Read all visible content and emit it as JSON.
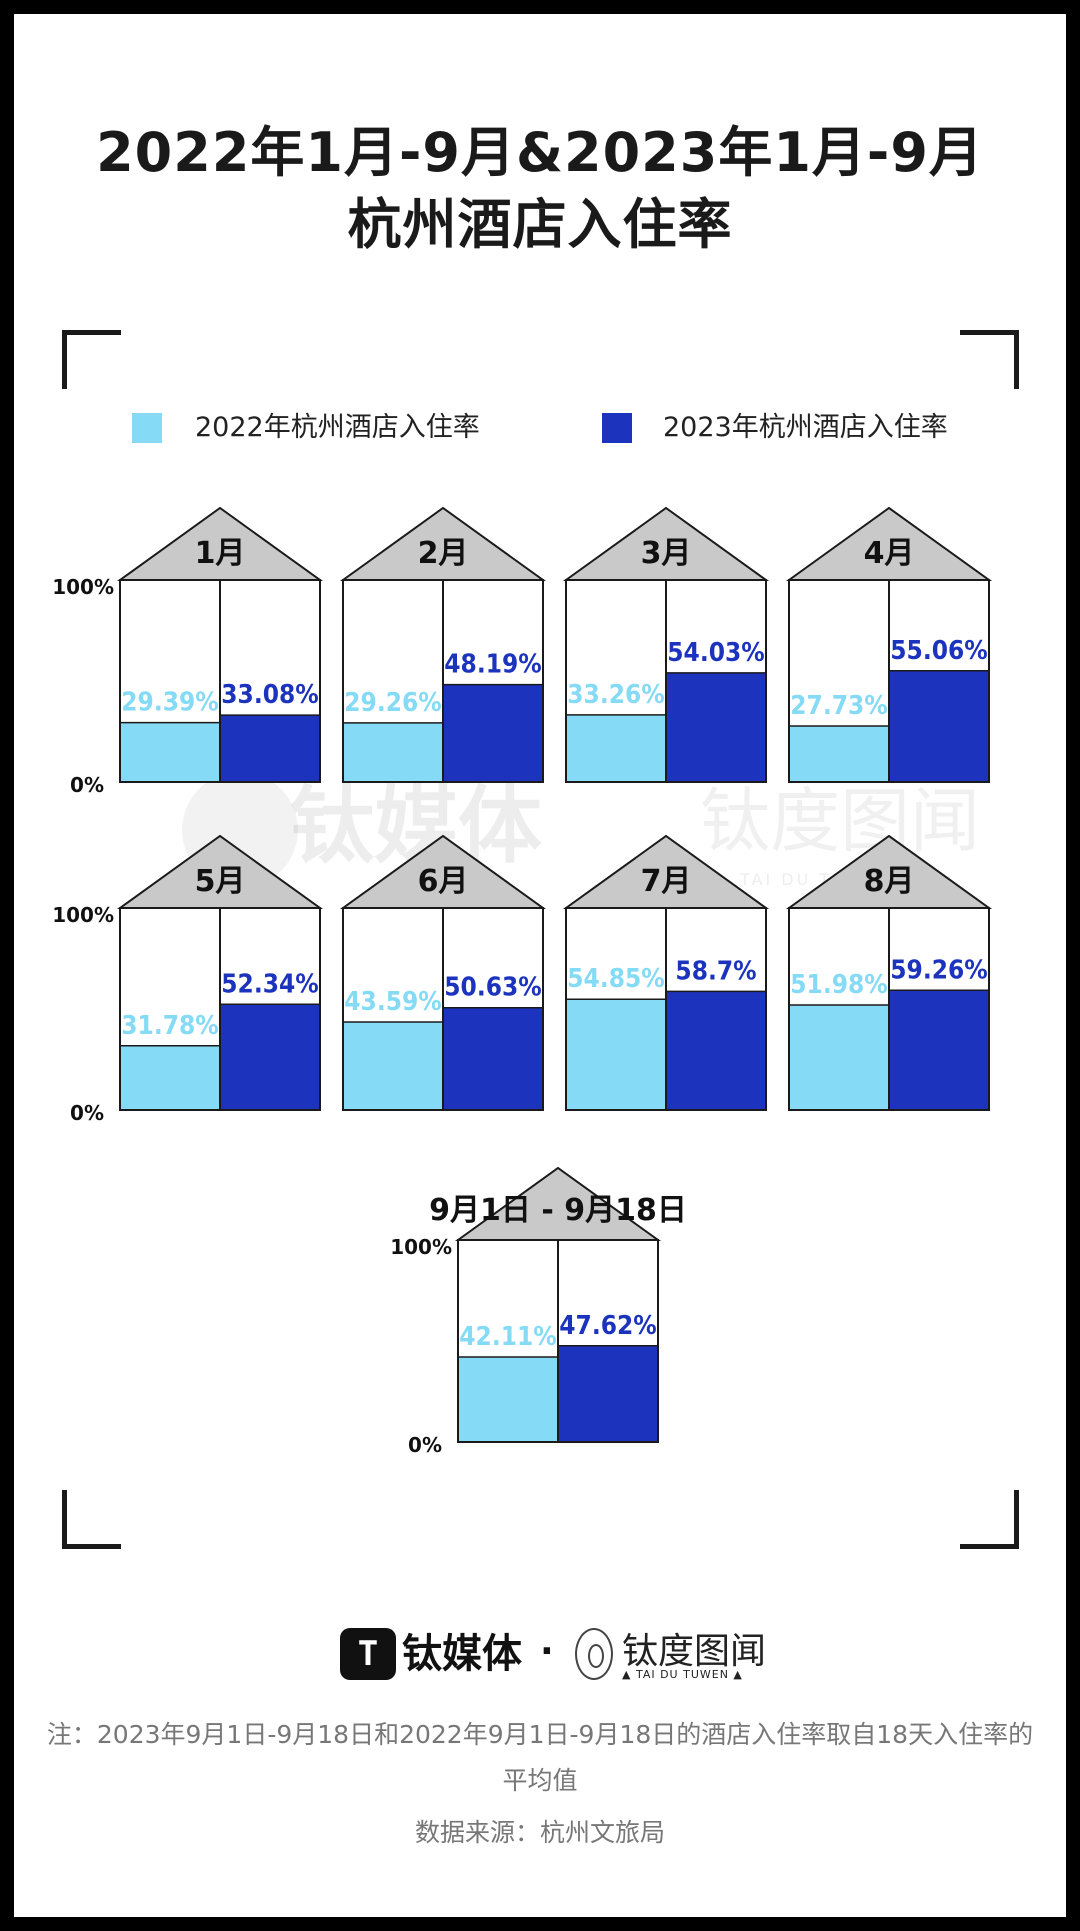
{
  "title": {
    "line1": "2022年1月-9月&2023年1月-9月",
    "line2": "杭州酒店入住率"
  },
  "legend": {
    "series_2022": "2022年杭州酒店入住率",
    "series_2023": "2023年杭州酒店入住率"
  },
  "colors": {
    "light_blue": "#85DAF5",
    "dark_blue": "#1C33BD",
    "roof_gray": "#C9C9C9",
    "label_light": "#85DAF5",
    "label_dark": "#1C33BD"
  },
  "watermark": {
    "brand1": "钛媒体",
    "brand2": "钛度图闻",
    "brand2_sub": "TAI DU TUWEN"
  },
  "chart_data": {
    "type": "bar",
    "y_tick_top": "100%",
    "y_tick_bottom": "0%",
    "ylim": [
      0,
      100
    ],
    "categories": [
      "1月",
      "2月",
      "3月",
      "4月",
      "5月",
      "6月",
      "7月",
      "8月",
      "9月1日 - 9月18日"
    ],
    "series": [
      {
        "name": "2022年杭州酒店入住率",
        "values": [
          29.39,
          29.26,
          33.26,
          27.73,
          31.78,
          43.59,
          54.85,
          51.98,
          42.11
        ],
        "labels": [
          "29.39%",
          "29.26%",
          "33.26%",
          "27.73%",
          "31.78%",
          "43.59%",
          "54.85%",
          "51.98%",
          "42.11%"
        ]
      },
      {
        "name": "2023年杭州酒店入住率",
        "values": [
          33.08,
          48.19,
          54.03,
          55.06,
          52.34,
          50.63,
          58.7,
          59.26,
          47.62
        ],
        "labels": [
          "33.08%",
          "48.19%",
          "54.03%",
          "55.06%",
          "52.34%",
          "50.63%",
          "58.7%",
          "59.26%",
          "47.62%"
        ]
      }
    ]
  },
  "footer": {
    "brand1": "钛媒体",
    "dot": "·",
    "brand2": "钛度图闻",
    "brand2_sub": "▲ TAI DU TUWEN ▲",
    "note": "注：2023年9月1日-9月18日和2022年9月1日-9月18日的酒店入住率取自18天入住率的平均值",
    "source": "数据来源：杭州文旅局"
  }
}
